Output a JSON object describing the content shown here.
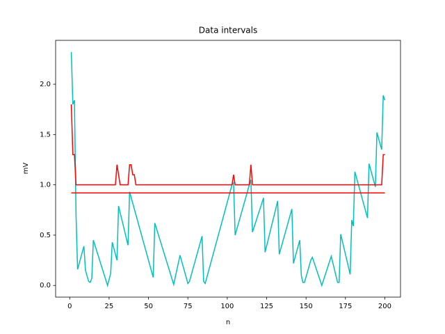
{
  "chart_data": {
    "type": "line",
    "title": "Data intervals",
    "x_label": "n",
    "y_label": "mV",
    "xlim": [
      -8.95,
      209.95
    ],
    "xticks": [
      0,
      25,
      50,
      75,
      100,
      125,
      150,
      175,
      200
    ],
    "ylim": [
      -0.116,
      2.436
    ],
    "yticks": [
      {
        "value": 0,
        "label": "0.0"
      },
      0.5,
      {
        "value": 1,
        "label": "1.0"
      },
      1.5,
      {
        "value": 2,
        "label": "2.0"
      }
    ],
    "grid": false,
    "series": [
      {
        "color": "#00bfbf",
        "x": [
          1,
          2,
          3,
          4,
          5,
          9,
          10,
          12,
          13,
          14,
          15,
          24,
          26,
          27,
          30,
          31,
          37,
          38,
          53,
          54,
          66,
          70,
          75,
          76,
          84,
          85,
          86,
          103,
          104,
          105,
          114,
          115,
          116,
          123,
          124,
          132,
          133,
          141,
          142,
          146,
          147,
          148,
          149,
          153,
          154,
          160,
          166,
          170,
          171,
          172,
          178,
          179,
          180,
          181,
          189,
          190,
          194,
          195,
          198,
          199,
          200
        ],
        "values": [
          2.32,
          1.8,
          1.84,
          0.7,
          0.16,
          0.39,
          0.15,
          0.04,
          0.03,
          0.07,
          0.45,
          0.0,
          0.12,
          0.43,
          0.25,
          0.79,
          0.4,
          0.93,
          0.08,
          0.62,
          0.01,
          0.3,
          0.02,
          0.04,
          0.49,
          0.04,
          0.02,
          1.0,
          1.02,
          0.5,
          1.0,
          1.05,
          0.53,
          0.87,
          0.33,
          0.84,
          0.31,
          0.76,
          0.22,
          0.45,
          0.1,
          0.03,
          0.03,
          0.25,
          0.28,
          0.0,
          0.29,
          0.03,
          0.03,
          0.51,
          0.11,
          0.65,
          0.59,
          1.13,
          0.67,
          1.21,
          0.98,
          1.52,
          1.35,
          1.89,
          1.84
        ]
      },
      {
        "color": "#ff0000",
        "x": [
          1,
          2,
          3,
          4,
          29,
          30,
          31,
          32,
          37,
          38,
          39,
          40,
          41,
          42,
          103,
          104,
          105,
          114,
          115,
          116,
          198,
          199,
          200
        ],
        "values": [
          1.8,
          1.3,
          1.3,
          1.0,
          1.0,
          1.2,
          1.1,
          1.0,
          1.0,
          1.2,
          1.2,
          1.1,
          1.1,
          1.0,
          1.0,
          1.1,
          1.0,
          1.0,
          1.2,
          1.0,
          1.0,
          1.3,
          1.3
        ]
      },
      {
        "color": "#ff0000",
        "x": [
          1,
          200
        ],
        "values": [
          0.92,
          0.92
        ]
      }
    ]
  }
}
